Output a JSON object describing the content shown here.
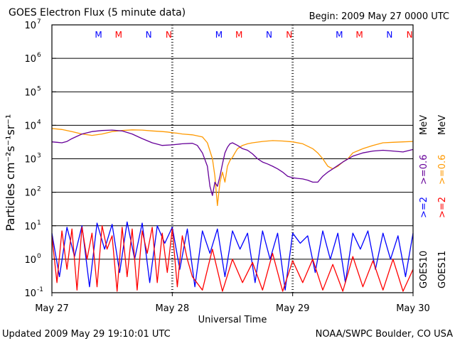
{
  "header": {
    "title": "GOES Electron Flux (5 minute data)",
    "begin": "Begin: 2009 May 27 0000 UTC"
  },
  "footer": {
    "updated": "Updated 2009 May 29 19:10:01 UTC",
    "credit": "NOAA/SWPC Boulder, CO USA"
  },
  "right_labels": {
    "goes10": "GOES10",
    "goes11": "GOES11",
    "e2_10": ">=2",
    "e06_10": ">=0.6",
    "e2_11": ">=2",
    "e06_11": ">=0.6",
    "unit_10": "MeV",
    "unit_11": "MeV"
  },
  "colors": {
    "goes10_2mev": "#0000ff",
    "goes11_2mev": "#ff0000",
    "goes10_06mev": "#660099",
    "goes11_06mev": "#ff9900",
    "label_black": "#000000",
    "background": "#ffffff"
  },
  "chart_data": {
    "type": "line",
    "title": "GOES Electron Flux (5 minute data)",
    "xlabel": "Universal Time",
    "ylabel": "Particles cm⁻²s⁻¹sr⁻¹",
    "yscale": "log",
    "ylim": [
      0.1,
      10000000
    ],
    "xlim": [
      0,
      72
    ],
    "x_unit": "hours since 2009 May 27 0000 UTC",
    "x_ticks": [
      {
        "x": 0,
        "label": "May 27"
      },
      {
        "x": 24,
        "label": "May 28"
      },
      {
        "x": 48,
        "label": "May 29"
      },
      {
        "x": 72,
        "label": "May 30"
      }
    ],
    "y_ticks": [
      {
        "base": "10",
        "exp": "-1",
        "value": 0.1
      },
      {
        "base": "10",
        "exp": "0",
        "value": 1
      },
      {
        "base": "10",
        "exp": "1",
        "value": 10
      },
      {
        "base": "10",
        "exp": "2",
        "value": 100
      },
      {
        "base": "10",
        "exp": "3",
        "value": 1000
      },
      {
        "base": "10",
        "exp": "4",
        "value": 10000
      },
      {
        "base": "10",
        "exp": "5",
        "value": 100000
      },
      {
        "base": "10",
        "exp": "6",
        "value": 1000000
      },
      {
        "base": "10",
        "exp": "7",
        "value": 10000000
      }
    ],
    "dashed_threshold": 1000,
    "midnight_noon_markers": [
      {
        "hour": 9.3,
        "label": "M",
        "color": "#0000ff"
      },
      {
        "hour": 13.3,
        "label": "M",
        "color": "#ff0000"
      },
      {
        "hour": 19.3,
        "label": "N",
        "color": "#0000ff"
      },
      {
        "hour": 23.3,
        "label": "N",
        "color": "#ff0000"
      },
      {
        "hour": 33.3,
        "label": "M",
        "color": "#0000ff"
      },
      {
        "hour": 37.3,
        "label": "M",
        "color": "#ff0000"
      },
      {
        "hour": 43.3,
        "label": "N",
        "color": "#0000ff"
      },
      {
        "hour": 47.3,
        "label": "N",
        "color": "#ff0000"
      },
      {
        "hour": 57.3,
        "label": "M",
        "color": "#0000ff"
      },
      {
        "hour": 61.3,
        "label": "M",
        "color": "#ff0000"
      },
      {
        "hour": 67.3,
        "label": "N",
        "color": "#0000ff"
      },
      {
        "hour": 71.3,
        "label": "N",
        "color": "#ff0000"
      }
    ],
    "series": [
      {
        "name": "GOES11 >=0.6 MeV",
        "color": "#ff9900",
        "x": [
          0,
          2,
          4,
          6,
          8,
          10,
          12,
          14,
          16,
          18,
          20,
          22,
          23,
          24,
          25,
          26,
          28,
          30,
          31,
          32,
          32.5,
          33,
          33.5,
          34,
          34.5,
          35,
          35.5,
          36,
          36.5,
          37,
          38,
          39,
          40,
          42,
          44,
          46,
          48,
          50,
          52,
          53,
          54,
          55,
          56,
          57,
          58,
          59,
          60,
          62,
          64,
          66,
          68,
          70,
          72
        ],
        "values": [
          8000,
          7500,
          6500,
          5500,
          5000,
          5500,
          6500,
          7000,
          7300,
          7200,
          6800,
          6500,
          6300,
          6000,
          5800,
          5500,
          5200,
          4500,
          3000,
          1000,
          300,
          40,
          200,
          400,
          200,
          600,
          900,
          1100,
          1500,
          2000,
          2500,
          2800,
          3000,
          3300,
          3500,
          3400,
          3200,
          2800,
          2000,
          1500,
          1000,
          600,
          500,
          600,
          800,
          1000,
          1500,
          2000,
          2500,
          3000,
          3100,
          3200,
          3300
        ]
      },
      {
        "name": "GOES10 >=0.6 MeV",
        "color": "#660099",
        "x": [
          0,
          1,
          2,
          3,
          4,
          6,
          8,
          10,
          12,
          14,
          16,
          18,
          20,
          22,
          24,
          26,
          28,
          29,
          30,
          31,
          31.5,
          32,
          32.5,
          33,
          33.5,
          34,
          34.5,
          35,
          35.5,
          36,
          37,
          38,
          39,
          40,
          41,
          42,
          43,
          44,
          45,
          46,
          47,
          48,
          49,
          50,
          51,
          52,
          53,
          54,
          55,
          56,
          58,
          60,
          62,
          64,
          66,
          68,
          70,
          72
        ],
        "values": [
          3200,
          3100,
          3000,
          3300,
          4000,
          5500,
          6500,
          7000,
          7200,
          6800,
          5500,
          4000,
          3000,
          2500,
          2600,
          2800,
          2900,
          2500,
          1500,
          600,
          150,
          80,
          200,
          150,
          300,
          700,
          1500,
          2200,
          2800,
          3000,
          2500,
          2000,
          1800,
          1400,
          1000,
          800,
          700,
          600,
          500,
          400,
          300,
          270,
          260,
          250,
          230,
          200,
          200,
          300,
          400,
          500,
          800,
          1200,
          1500,
          1700,
          1800,
          1700,
          1600,
          1900
        ]
      },
      {
        "name": "GOES10 >=2 MeV",
        "color": "#0000ff",
        "x": [
          0,
          1.5,
          3,
          4.5,
          6,
          7.5,
          9,
          10.5,
          12,
          13.5,
          15,
          16.5,
          18,
          19.5,
          21,
          22.5,
          24,
          25.5,
          27,
          28.5,
          30,
          31.5,
          33,
          34.5,
          36,
          37.5,
          39,
          40.5,
          42,
          43.5,
          45,
          46.5,
          48,
          49.5,
          51,
          52.5,
          54,
          55.5,
          57,
          58.5,
          60,
          61.5,
          63,
          64.5,
          66,
          67.5,
          69,
          70.5,
          72
        ],
        "values": [
          6,
          0.3,
          9,
          1.2,
          10,
          0.15,
          12,
          2,
          11,
          0.4,
          13,
          1,
          12,
          0.2,
          10,
          3,
          9,
          0.5,
          8,
          0.15,
          7,
          1.5,
          8,
          0.3,
          7,
          2,
          6,
          0.2,
          7,
          1,
          6,
          0.12,
          6,
          3,
          5,
          0.4,
          7,
          1,
          6,
          0.2,
          6,
          2,
          7,
          0.5,
          6,
          1,
          5,
          0.3,
          6
        ]
      },
      {
        "name": "GOES11 >=2 MeV",
        "color": "#ff0000",
        "x": [
          0,
          1,
          2,
          3,
          4,
          5,
          6,
          7,
          8,
          9,
          10,
          11,
          12,
          13,
          14,
          15,
          16,
          17,
          18,
          19,
          20,
          21,
          22,
          23,
          24,
          25,
          26,
          27,
          28,
          30,
          32,
          34,
          36,
          38,
          40,
          42,
          44,
          46,
          48,
          50,
          52,
          54,
          56,
          58,
          60,
          62,
          64,
          66,
          68,
          70,
          72
        ],
        "values": [
          5,
          0.2,
          7,
          0.5,
          8,
          0.12,
          9,
          1,
          6,
          0.15,
          10,
          2,
          5,
          0.11,
          9,
          0.3,
          8,
          0.12,
          7,
          1.5,
          9,
          0.2,
          6,
          0.4,
          8,
          0.15,
          5,
          1,
          0.3,
          0.12,
          2,
          0.11,
          1,
          0.2,
          0.8,
          0.12,
          1.5,
          0.11,
          0.9,
          0.2,
          1,
          0.12,
          0.7,
          0.11,
          1.2,
          0.15,
          0.9,
          0.12,
          1,
          0.11,
          0.5
        ]
      }
    ]
  }
}
